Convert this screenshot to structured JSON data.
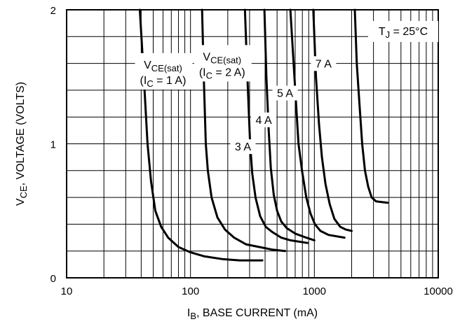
{
  "chart_data": {
    "type": "line",
    "x_scale": "log",
    "xlim": [
      10,
      10000
    ],
    "ylim": [
      0,
      2
    ],
    "grid": true,
    "x_tick_labels": [
      "10",
      "100",
      "1000",
      "10000"
    ],
    "y_tick_labels": [
      "0",
      "1",
      "2"
    ],
    "xlabel": {
      "main": "I",
      "sub": "B",
      "rest": ", BASE CURRENT (mA)"
    },
    "ylabel": {
      "main": "V",
      "sub": "CE",
      "rest": ", VOLTAGE (VOLTS)"
    },
    "annotation": {
      "main": "T",
      "sub": "J",
      "rest": " = 25°C"
    },
    "series": [
      {
        "points": [
          [
            39,
            2.0
          ],
          [
            42,
            1.5
          ],
          [
            45,
            1.0
          ],
          [
            48,
            0.72
          ],
          [
            52,
            0.5
          ],
          [
            58,
            0.38
          ],
          [
            66,
            0.3
          ],
          [
            80,
            0.23
          ],
          [
            100,
            0.19
          ],
          [
            130,
            0.16
          ],
          [
            180,
            0.14
          ],
          [
            250,
            0.13
          ],
          [
            380,
            0.13
          ]
        ]
      },
      {
        "points": [
          [
            124,
            2.0
          ],
          [
            128,
            1.5
          ],
          [
            133,
            1.0
          ],
          [
            138,
            0.8
          ],
          [
            148,
            0.6
          ],
          [
            165,
            0.45
          ],
          [
            190,
            0.36
          ],
          [
            225,
            0.3
          ],
          [
            280,
            0.25
          ],
          [
            360,
            0.23
          ],
          [
            460,
            0.21
          ],
          [
            580,
            0.2
          ]
        ]
      },
      {
        "points": [
          [
            275,
            2.0
          ],
          [
            288,
            1.5
          ],
          [
            303,
            1.0
          ],
          [
            315,
            0.78
          ],
          [
            335,
            0.6
          ],
          [
            365,
            0.46
          ],
          [
            405,
            0.38
          ],
          [
            460,
            0.34
          ],
          [
            540,
            0.3
          ],
          [
            640,
            0.28
          ],
          [
            880,
            0.26
          ]
        ]
      },
      {
        "points": [
          [
            395,
            2.0
          ],
          [
            410,
            1.5
          ],
          [
            428,
            1.1
          ],
          [
            445,
            0.82
          ],
          [
            470,
            0.62
          ],
          [
            500,
            0.5
          ],
          [
            540,
            0.42
          ],
          [
            600,
            0.37
          ],
          [
            700,
            0.33
          ],
          [
            860,
            0.3
          ],
          [
            1000,
            0.28
          ]
        ]
      },
      {
        "points": [
          [
            640,
            2.0
          ],
          [
            690,
            1.5
          ],
          [
            745,
            1.0
          ],
          [
            795,
            0.8
          ],
          [
            860,
            0.6
          ],
          [
            930,
            0.48
          ],
          [
            1010,
            0.4
          ],
          [
            1120,
            0.35
          ],
          [
            1300,
            0.32
          ],
          [
            1750,
            0.3
          ]
        ]
      },
      {
        "points": [
          [
            980,
            2.0
          ],
          [
            1030,
            1.5
          ],
          [
            1090,
            1.15
          ],
          [
            1150,
            0.9
          ],
          [
            1230,
            0.7
          ],
          [
            1330,
            0.55
          ],
          [
            1450,
            0.44
          ],
          [
            1620,
            0.38
          ],
          [
            1800,
            0.36
          ],
          [
            2000,
            0.35
          ]
        ]
      },
      {
        "points": [
          [
            2120,
            2.0
          ],
          [
            2200,
            1.6
          ],
          [
            2310,
            1.3
          ],
          [
            2430,
            1.0
          ],
          [
            2560,
            0.8
          ],
          [
            2720,
            0.68
          ],
          [
            2900,
            0.6
          ],
          [
            3150,
            0.57
          ],
          [
            3900,
            0.56
          ]
        ]
      }
    ],
    "curve_labels": [
      {
        "main": "V",
        "sub": "CE(sat)",
        "sub2": "(I",
        "sub2sub": "C",
        "sub2rest": " = 1 A)",
        "x": 60,
        "y": 1.52
      },
      {
        "main": "V",
        "sub": "CE(sat)",
        "sub2": "(I",
        "sub2sub": "C",
        "sub2rest": " = 2 A)",
        "x": 180,
        "y": 1.58
      },
      {
        "text": "3 A",
        "x": 265,
        "y": 0.95
      },
      {
        "text": "4 A",
        "x": 390,
        "y": 1.15
      },
      {
        "text": "5 A",
        "x": 580,
        "y": 1.35
      },
      {
        "text": "7 A",
        "x": 1185,
        "y": 1.57
      }
    ]
  }
}
